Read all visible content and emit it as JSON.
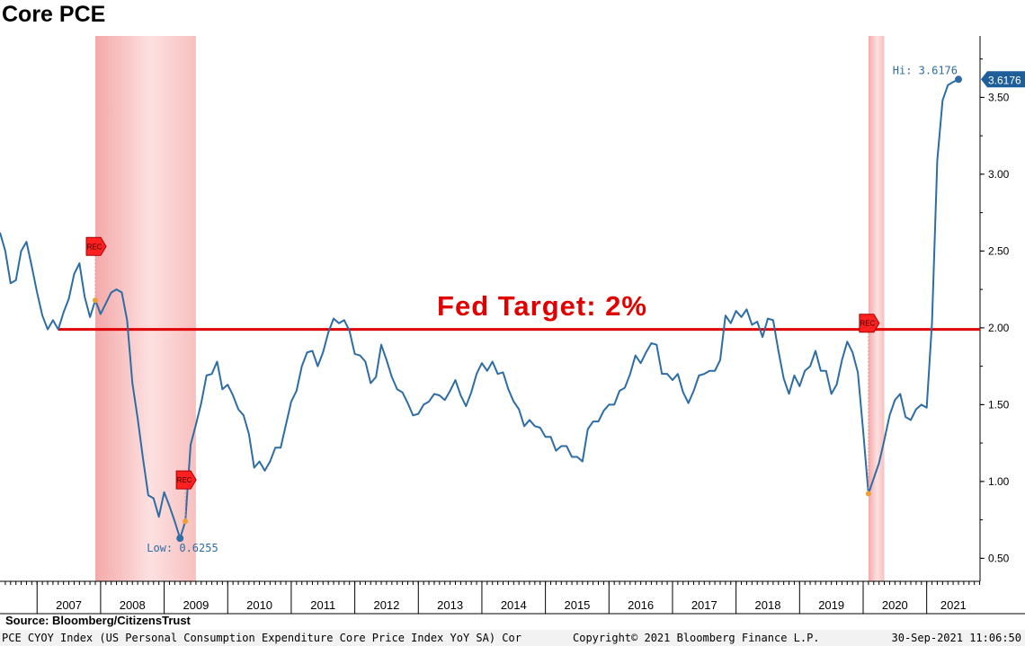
{
  "chart_data": {
    "type": "line",
    "title": "Core PCE",
    "x_start": "2006-06",
    "x_end": "2021-08",
    "ylim": [
      0.35,
      3.9
    ],
    "yticks": [
      0.5,
      1.0,
      1.5,
      2.0,
      2.5,
      3.0,
      3.5
    ],
    "ytick_labels": [
      "0.50",
      "1.00",
      "1.50",
      "2.00",
      "2.50",
      "3.00",
      "3.50"
    ],
    "year_labels": [
      "2007",
      "2008",
      "2009",
      "2010",
      "2011",
      "2012",
      "2013",
      "2014",
      "2015",
      "2016",
      "2017",
      "2018",
      "2019",
      "2020",
      "2021"
    ],
    "line_color": "#2e6da4",
    "series": [
      {
        "values": [
          [
            "2006-06",
            2.62
          ],
          [
            "2006-07",
            2.5
          ],
          [
            "2006-08",
            2.29
          ],
          [
            "2006-09",
            2.31
          ],
          [
            "2006-10",
            2.5
          ],
          [
            "2006-11",
            2.56
          ],
          [
            "2006-12",
            2.4
          ],
          [
            "2007-01",
            2.23
          ],
          [
            "2007-02",
            2.08
          ],
          [
            "2007-03",
            1.99
          ],
          [
            "2007-04",
            2.05
          ],
          [
            "2007-05",
            1.99
          ],
          [
            "2007-06",
            2.1
          ],
          [
            "2007-07",
            2.19
          ],
          [
            "2007-08",
            2.35
          ],
          [
            "2007-09",
            2.42
          ],
          [
            "2007-10",
            2.2
          ],
          [
            "2007-11",
            2.07
          ],
          [
            "2007-12",
            2.18
          ],
          [
            "2008-01",
            2.09
          ],
          [
            "2008-02",
            2.16
          ],
          [
            "2008-03",
            2.23
          ],
          [
            "2008-04",
            2.25
          ],
          [
            "2008-05",
            2.23
          ],
          [
            "2008-06",
            2.05
          ],
          [
            "2008-07",
            1.64
          ],
          [
            "2008-08",
            1.41
          ],
          [
            "2008-09",
            1.15
          ],
          [
            "2008-10",
            0.91
          ],
          [
            "2008-11",
            0.89
          ],
          [
            "2008-12",
            0.77
          ],
          [
            "2009-01",
            0.93
          ],
          [
            "2009-02",
            0.84
          ],
          [
            "2009-03",
            0.74
          ],
          [
            "2009-04",
            0.63
          ],
          [
            "2009-05",
            0.74
          ],
          [
            "2009-06",
            1.24
          ],
          [
            "2009-07",
            1.37
          ],
          [
            "2009-08",
            1.51
          ],
          [
            "2009-09",
            1.69
          ],
          [
            "2009-10",
            1.7
          ],
          [
            "2009-11",
            1.78
          ],
          [
            "2009-12",
            1.6
          ],
          [
            "2010-01",
            1.63
          ],
          [
            "2010-02",
            1.56
          ],
          [
            "2010-03",
            1.47
          ],
          [
            "2010-04",
            1.43
          ],
          [
            "2010-05",
            1.31
          ],
          [
            "2010-06",
            1.09
          ],
          [
            "2010-07",
            1.13
          ],
          [
            "2010-08",
            1.07
          ],
          [
            "2010-09",
            1.13
          ],
          [
            "2010-10",
            1.22
          ],
          [
            "2010-11",
            1.22
          ],
          [
            "2010-12",
            1.37
          ],
          [
            "2011-01",
            1.52
          ],
          [
            "2011-02",
            1.59
          ],
          [
            "2011-03",
            1.75
          ],
          [
            "2011-04",
            1.84
          ],
          [
            "2011-05",
            1.85
          ],
          [
            "2011-06",
            1.75
          ],
          [
            "2011-07",
            1.84
          ],
          [
            "2011-08",
            1.97
          ],
          [
            "2011-09",
            2.06
          ],
          [
            "2011-10",
            2.03
          ],
          [
            "2011-11",
            2.05
          ],
          [
            "2011-12",
            1.98
          ],
          [
            "2012-01",
            1.83
          ],
          [
            "2012-02",
            1.82
          ],
          [
            "2012-03",
            1.78
          ],
          [
            "2012-04",
            1.64
          ],
          [
            "2012-05",
            1.68
          ],
          [
            "2012-06",
            1.89
          ],
          [
            "2012-07",
            1.79
          ],
          [
            "2012-08",
            1.68
          ],
          [
            "2012-09",
            1.6
          ],
          [
            "2012-10",
            1.58
          ],
          [
            "2012-11",
            1.51
          ],
          [
            "2012-12",
            1.43
          ],
          [
            "2013-01",
            1.44
          ],
          [
            "2013-02",
            1.5
          ],
          [
            "2013-03",
            1.52
          ],
          [
            "2013-04",
            1.57
          ],
          [
            "2013-05",
            1.56
          ],
          [
            "2013-06",
            1.53
          ],
          [
            "2013-07",
            1.59
          ],
          [
            "2013-08",
            1.66
          ],
          [
            "2013-09",
            1.56
          ],
          [
            "2013-10",
            1.49
          ],
          [
            "2013-11",
            1.58
          ],
          [
            "2013-12",
            1.7
          ],
          [
            "2014-01",
            1.77
          ],
          [
            "2014-02",
            1.72
          ],
          [
            "2014-03",
            1.78
          ],
          [
            "2014-04",
            1.7
          ],
          [
            "2014-05",
            1.71
          ],
          [
            "2014-06",
            1.6
          ],
          [
            "2014-07",
            1.52
          ],
          [
            "2014-08",
            1.47
          ],
          [
            "2014-09",
            1.36
          ],
          [
            "2014-10",
            1.4
          ],
          [
            "2014-11",
            1.36
          ],
          [
            "2014-12",
            1.35
          ],
          [
            "2015-01",
            1.29
          ],
          [
            "2015-02",
            1.29
          ],
          [
            "2015-03",
            1.2
          ],
          [
            "2015-04",
            1.23
          ],
          [
            "2015-05",
            1.23
          ],
          [
            "2015-06",
            1.16
          ],
          [
            "2015-07",
            1.16
          ],
          [
            "2015-08",
            1.13
          ],
          [
            "2015-09",
            1.34
          ],
          [
            "2015-10",
            1.39
          ],
          [
            "2015-11",
            1.39
          ],
          [
            "2015-12",
            1.46
          ],
          [
            "2016-01",
            1.5
          ],
          [
            "2016-02",
            1.5
          ],
          [
            "2016-03",
            1.59
          ],
          [
            "2016-04",
            1.61
          ],
          [
            "2016-05",
            1.7
          ],
          [
            "2016-06",
            1.82
          ],
          [
            "2016-07",
            1.77
          ],
          [
            "2016-08",
            1.84
          ],
          [
            "2016-09",
            1.9
          ],
          [
            "2016-10",
            1.89
          ],
          [
            "2016-11",
            1.7
          ],
          [
            "2016-12",
            1.7
          ],
          [
            "2017-01",
            1.66
          ],
          [
            "2017-02",
            1.7
          ],
          [
            "2017-03",
            1.58
          ],
          [
            "2017-04",
            1.51
          ],
          [
            "2017-05",
            1.59
          ],
          [
            "2017-06",
            1.69
          ],
          [
            "2017-07",
            1.7
          ],
          [
            "2017-08",
            1.72
          ],
          [
            "2017-09",
            1.72
          ],
          [
            "2017-10",
            1.79
          ],
          [
            "2017-11",
            2.08
          ],
          [
            "2017-12",
            2.03
          ],
          [
            "2018-01",
            2.11
          ],
          [
            "2018-02",
            2.07
          ],
          [
            "2018-03",
            2.12
          ],
          [
            "2018-04",
            2.02
          ],
          [
            "2018-05",
            2.04
          ],
          [
            "2018-06",
            1.94
          ],
          [
            "2018-07",
            2.06
          ],
          [
            "2018-08",
            2.05
          ],
          [
            "2018-09",
            1.85
          ],
          [
            "2018-10",
            1.67
          ],
          [
            "2018-11",
            1.57
          ],
          [
            "2018-12",
            1.69
          ],
          [
            "2019-01",
            1.62
          ],
          [
            "2019-02",
            1.72
          ],
          [
            "2019-03",
            1.75
          ],
          [
            "2019-04",
            1.85
          ],
          [
            "2019-05",
            1.72
          ],
          [
            "2019-06",
            1.72
          ],
          [
            "2019-07",
            1.57
          ],
          [
            "2019-08",
            1.63
          ],
          [
            "2019-09",
            1.79
          ],
          [
            "2019-10",
            1.91
          ],
          [
            "2019-11",
            1.84
          ],
          [
            "2019-12",
            1.71
          ],
          [
            "2020-01",
            1.33
          ],
          [
            "2020-02",
            0.92
          ],
          [
            "2020-03",
            1.02
          ],
          [
            "2020-04",
            1.12
          ],
          [
            "2020-05",
            1.27
          ],
          [
            "2020-06",
            1.43
          ],
          [
            "2020-07",
            1.53
          ],
          [
            "2020-08",
            1.57
          ],
          [
            "2020-09",
            1.42
          ],
          [
            "2020-10",
            1.4
          ],
          [
            "2020-11",
            1.47
          ],
          [
            "2020-12",
            1.5
          ],
          [
            "2021-01",
            1.48
          ],
          [
            "2021-02",
            2.03
          ],
          [
            "2021-03",
            3.09
          ],
          [
            "2021-04",
            3.48
          ],
          [
            "2021-05",
            3.58
          ],
          [
            "2021-06",
            3.6
          ],
          [
            "2021-07",
            3.6176
          ]
        ]
      }
    ],
    "recessions": [
      {
        "start": "2007-12",
        "end": "2009-06"
      },
      {
        "start": "2020-02",
        "end": "2020-04"
      }
    ],
    "rec_markers": [
      {
        "date": "2007-12",
        "value": 2.53,
        "label": "REC"
      },
      {
        "date": "2009-05",
        "value": 1.01,
        "label": "REC"
      },
      {
        "date": "2020-02",
        "value": 2.03,
        "label": "REC"
      }
    ],
    "target_line": {
      "value": 1.99,
      "start": "2007-05",
      "color": "#e00000"
    },
    "annotation": "Fed Target: 2%",
    "hi_label": "Hi: 3.6176",
    "low_label": "Low: 0.6255",
    "last_value_label": "3.6176"
  },
  "source_label": "Source:",
  "source_value": "Bloomberg/CitizensTrust",
  "footer": {
    "left": "PCE CYOY Index (US Personal Consumption Expenditure Core Price Index YoY SA) Cor",
    "middle": "Copyright© 2021 Bloomberg Finance L.P.",
    "right": "30-Sep-2021 11:06:50"
  }
}
